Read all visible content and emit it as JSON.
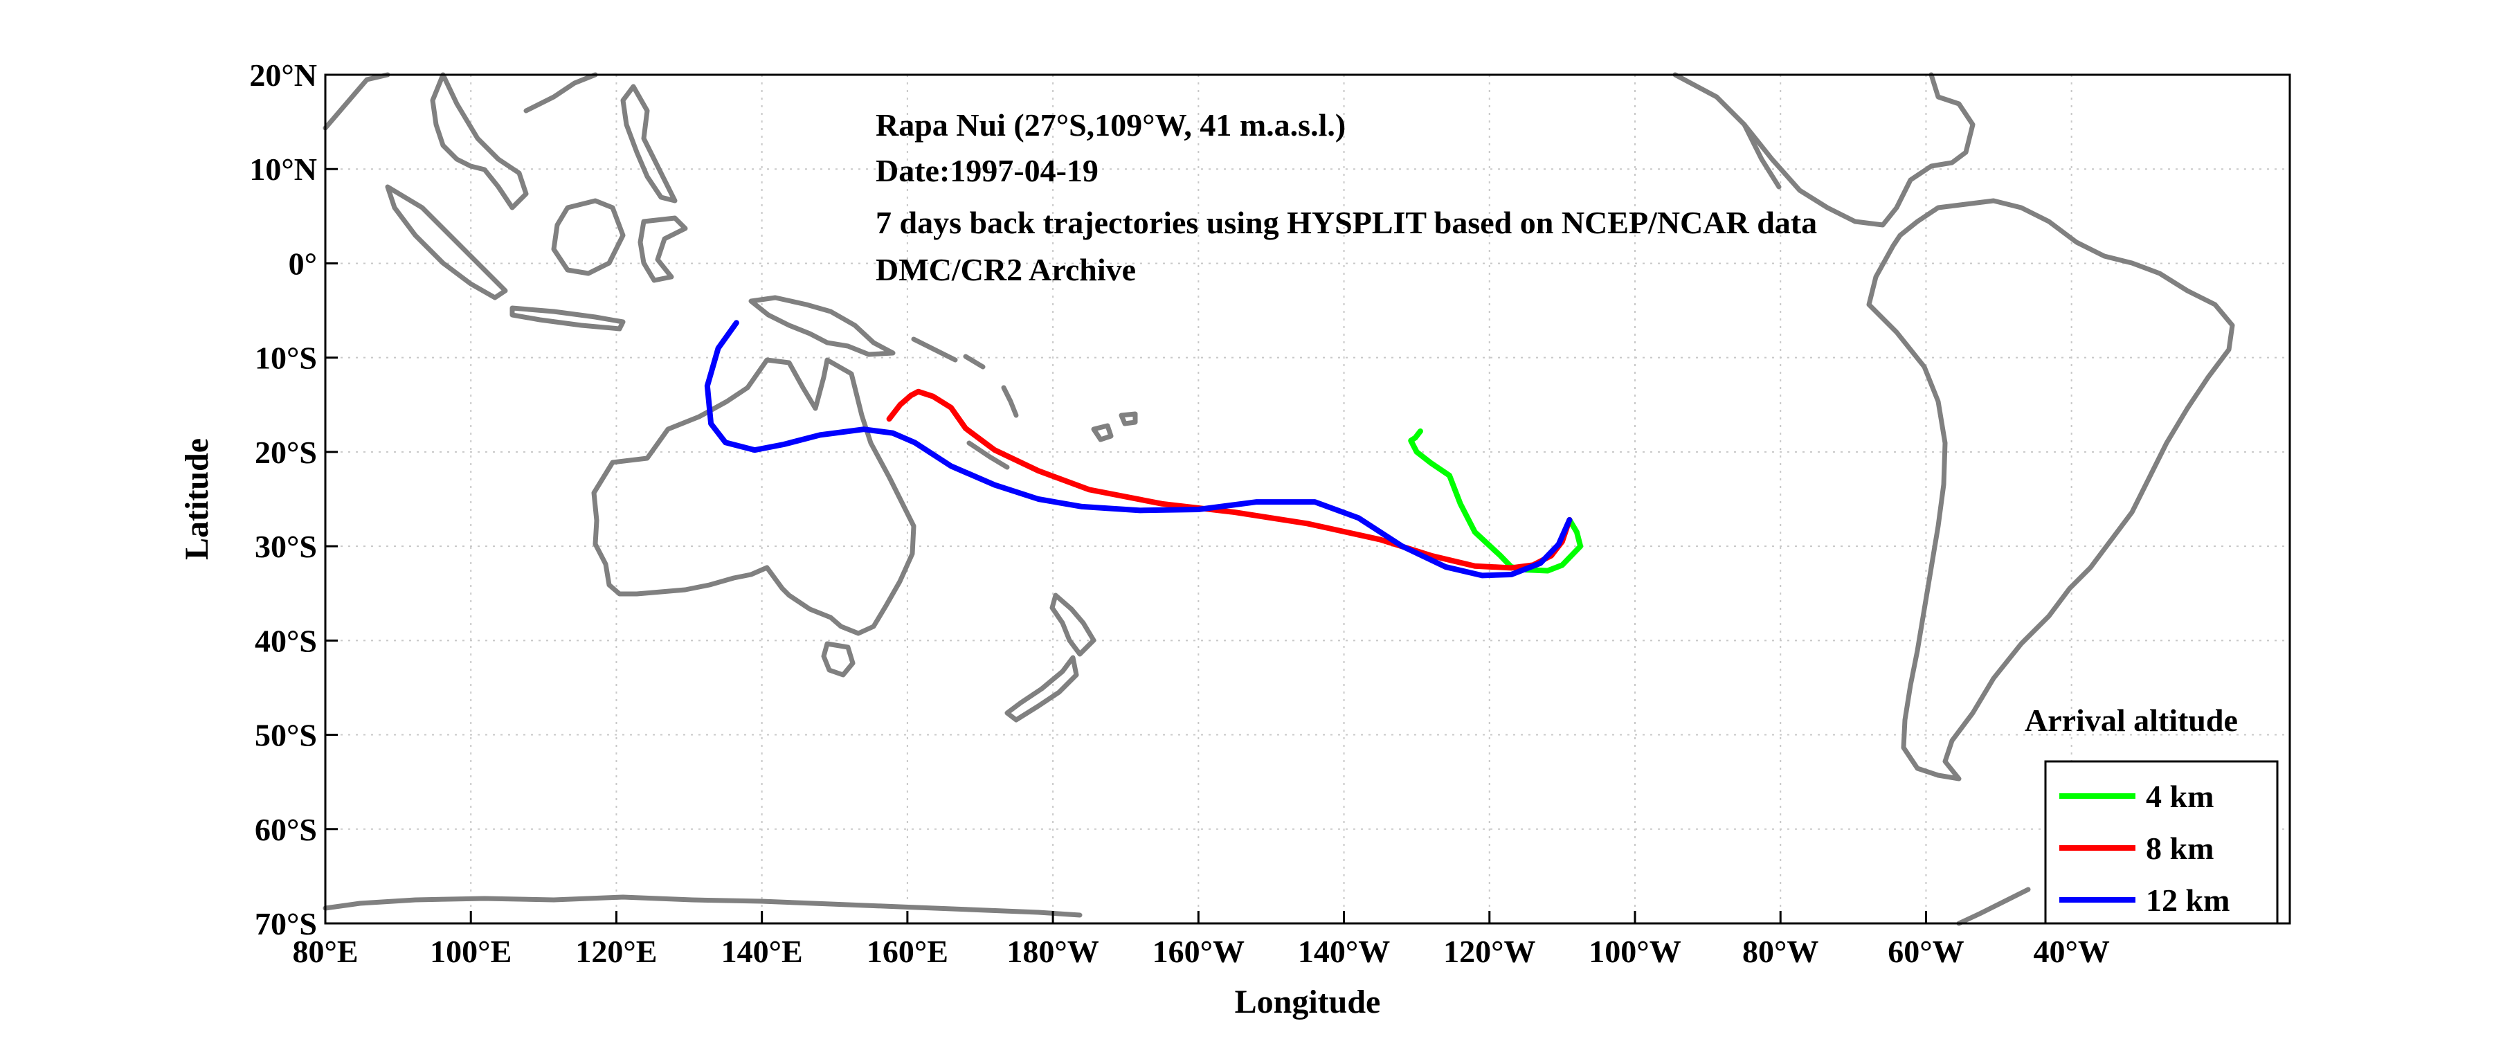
{
  "chart_data": {
    "type": "line",
    "title": "",
    "xlabel": "Longitude",
    "ylabel": "Latitude",
    "xlim": [
      80,
      350
    ],
    "ylim": [
      -70,
      20
    ],
    "grid": true,
    "legend_placement": "bottom-right",
    "legend_title": "Arrival altitude",
    "annotations": [
      "Rapa Nui (27°S,109°W, 41 m.a.s.l.)",
      "Date:1997-04-19",
      "7 days back trajectories using HYSPLIT based on NCEP/NCAR data",
      "DMC/CR2 Archive"
    ],
    "x_ticks": [
      {
        "value": 80,
        "label": "80°E"
      },
      {
        "value": 100,
        "label": "100°E"
      },
      {
        "value": 120,
        "label": "120°E"
      },
      {
        "value": 140,
        "label": "140°E"
      },
      {
        "value": 160,
        "label": "160°E"
      },
      {
        "value": 180,
        "label": "180°W"
      },
      {
        "value": 200,
        "label": "160°W"
      },
      {
        "value": 220,
        "label": "140°W"
      },
      {
        "value": 240,
        "label": "120°W"
      },
      {
        "value": 260,
        "label": "100°W"
      },
      {
        "value": 280,
        "label": "80°W"
      },
      {
        "value": 300,
        "label": "60°W"
      },
      {
        "value": 320,
        "label": "40°W"
      }
    ],
    "y_ticks": [
      {
        "value": 20,
        "label": "20°N"
      },
      {
        "value": 10,
        "label": "10°N"
      },
      {
        "value": 0,
        "label": "0°"
      },
      {
        "value": -10,
        "label": "10°S"
      },
      {
        "value": -20,
        "label": "20°S"
      },
      {
        "value": -30,
        "label": "30°S"
      },
      {
        "value": -40,
        "label": "40°S"
      },
      {
        "value": -50,
        "label": "50°S"
      },
      {
        "value": -60,
        "label": "60°S"
      },
      {
        "value": -70,
        "label": "70°S"
      }
    ],
    "series": [
      {
        "name": "4 km",
        "color": "#00ff00",
        "points": [
          [
            251,
            -27.2
          ],
          [
            252,
            -28.5
          ],
          [
            252.5,
            -30
          ],
          [
            250,
            -32
          ],
          [
            248,
            -32.6
          ],
          [
            245,
            -32.5
          ],
          [
            243,
            -32.2
          ],
          [
            241.5,
            -31
          ],
          [
            238,
            -28.5
          ],
          [
            236,
            -25.5
          ],
          [
            234.5,
            -22.5
          ],
          [
            232,
            -21.2
          ],
          [
            230,
            -20
          ],
          [
            229.2,
            -18.8
          ],
          [
            229.8,
            -18.5
          ],
          [
            230.5,
            -17.8
          ]
        ]
      },
      {
        "name": "8 km",
        "color": "#ff0000",
        "points": [
          [
            251,
            -27.2
          ],
          [
            250,
            -29.5
          ],
          [
            248.5,
            -31
          ],
          [
            246,
            -32
          ],
          [
            243,
            -32.3
          ],
          [
            238,
            -32.1
          ],
          [
            232,
            -31
          ],
          [
            225,
            -29.3
          ],
          [
            215,
            -27.6
          ],
          [
            205,
            -26.4
          ],
          [
            195,
            -25.5
          ],
          [
            185,
            -24
          ],
          [
            178,
            -22
          ],
          [
            172,
            -19.8
          ],
          [
            168,
            -17.5
          ],
          [
            166,
            -15.3
          ],
          [
            163.5,
            -14.1
          ],
          [
            161.5,
            -13.6
          ],
          [
            160.5,
            -14
          ],
          [
            159,
            -15
          ],
          [
            157.5,
            -16.5
          ]
        ]
      },
      {
        "name": "12 km",
        "color": "#0000ff",
        "points": [
          [
            251,
            -27.2
          ],
          [
            249.5,
            -29.8
          ],
          [
            247,
            -31.8
          ],
          [
            243,
            -33
          ],
          [
            239,
            -33.1
          ],
          [
            234,
            -32.2
          ],
          [
            228,
            -30
          ],
          [
            222,
            -27
          ],
          [
            216,
            -25.3
          ],
          [
            208,
            -25.3
          ],
          [
            200,
            -26.1
          ],
          [
            192,
            -26.2
          ],
          [
            184,
            -25.8
          ],
          [
            178,
            -25
          ],
          [
            172,
            -23.5
          ],
          [
            166,
            -21.5
          ],
          [
            161,
            -19
          ],
          [
            158,
            -18
          ],
          [
            154,
            -17.6
          ],
          [
            148,
            -18.2
          ],
          [
            143,
            -19.2
          ],
          [
            139,
            -19.8
          ],
          [
            135,
            -19
          ],
          [
            133,
            -17
          ],
          [
            132.5,
            -13
          ],
          [
            134,
            -9
          ],
          [
            136.5,
            -6.3
          ]
        ]
      }
    ]
  },
  "map_data": {
    "land_outlines": [
      "australia",
      "new-guinea",
      "borneo",
      "sumatra",
      "sulawesi",
      "philippines",
      "new-zealand-north-island",
      "new-zealand-south-island",
      "tasmania",
      "java",
      "north-america",
      "south-america",
      "antarctica"
    ],
    "land_color": "#808080"
  }
}
